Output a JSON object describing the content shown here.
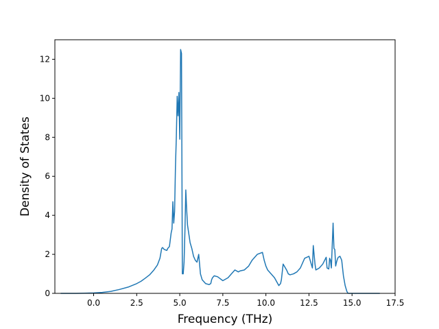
{
  "chart_data": {
    "type": "line",
    "title": "",
    "xlabel": "Frequency (THz)",
    "ylabel": "Density of States",
    "xlim": [
      -2.25,
      17.5
    ],
    "ylim": [
      0,
      13
    ],
    "xticks": [
      0.0,
      2.5,
      5.0,
      7.5,
      10.0,
      12.5,
      15.0,
      17.5
    ],
    "xtick_labels": [
      "0.0",
      "2.5",
      "5.0",
      "7.5",
      "10.0",
      "12.5",
      "15.0",
      "17.5"
    ],
    "yticks": [
      0,
      2,
      4,
      6,
      8,
      10,
      12
    ],
    "ytick_labels": [
      "0",
      "2",
      "4",
      "6",
      "8",
      "10",
      "12"
    ],
    "grid": false,
    "legend": "none",
    "line_color": "#1f77b4",
    "series": [
      {
        "x": [
          -1.9,
          -1.0,
          0.0,
          0.5,
          1.0,
          1.5,
          2.0,
          2.5,
          2.75,
          3.0,
          3.25,
          3.5,
          3.7,
          3.85,
          3.95,
          4.0,
          4.1,
          4.25,
          4.3,
          4.4,
          4.5,
          4.55,
          4.6,
          4.65,
          4.7,
          4.75,
          4.8,
          4.85,
          4.9,
          4.95,
          5.0,
          5.05,
          5.1,
          5.15,
          5.2,
          5.25,
          5.3,
          5.35,
          5.4,
          5.45,
          5.55,
          5.6,
          5.7,
          5.75,
          5.8,
          5.9,
          6.0,
          6.1,
          6.2,
          6.3,
          6.5,
          6.7,
          6.8,
          6.85,
          6.9,
          7.0,
          7.2,
          7.5,
          7.8,
          8.0,
          8.2,
          8.4,
          8.5,
          8.75,
          9.0,
          9.2,
          9.5,
          9.8,
          9.9,
          10.0,
          10.1,
          10.3,
          10.5,
          10.75,
          10.85,
          10.9,
          11.0,
          11.2,
          11.3,
          11.4,
          11.6,
          11.8,
          12.0,
          12.25,
          12.5,
          12.7,
          12.75,
          12.85,
          12.9,
          13.0,
          13.1,
          13.3,
          13.5,
          13.55,
          13.65,
          13.7,
          13.75,
          13.8,
          13.9,
          13.95,
          14.0,
          14.05,
          14.1,
          14.15,
          14.2,
          14.3,
          14.4,
          14.5,
          14.6,
          14.7,
          14.75,
          14.8,
          14.9,
          14.95,
          15.0,
          15.1,
          15.3,
          15.5,
          16.0,
          16.6
        ],
        "y": [
          0.0,
          0.0,
          0.02,
          0.05,
          0.1,
          0.2,
          0.32,
          0.5,
          0.62,
          0.78,
          0.95,
          1.2,
          1.45,
          1.8,
          2.3,
          2.35,
          2.25,
          2.2,
          2.3,
          2.4,
          3.1,
          3.3,
          4.7,
          3.6,
          4.2,
          6.5,
          8.0,
          10.1,
          9.1,
          10.3,
          7.9,
          12.5,
          12.3,
          1.0,
          1.0,
          1.6,
          3.2,
          5.3,
          4.3,
          3.5,
          2.9,
          2.6,
          2.3,
          2.1,
          1.9,
          1.7,
          1.6,
          2.0,
          1.0,
          0.7,
          0.5,
          0.45,
          0.5,
          0.7,
          0.8,
          0.9,
          0.85,
          0.65,
          0.8,
          1.0,
          1.2,
          1.1,
          1.15,
          1.2,
          1.4,
          1.7,
          2.0,
          2.1,
          1.7,
          1.4,
          1.2,
          1.0,
          0.8,
          0.4,
          0.5,
          0.7,
          1.5,
          1.2,
          1.0,
          0.95,
          1.0,
          1.1,
          1.3,
          1.8,
          1.9,
          1.3,
          2.45,
          1.5,
          1.2,
          1.25,
          1.3,
          1.5,
          1.85,
          1.3,
          1.25,
          1.8,
          1.7,
          1.3,
          3.6,
          2.3,
          2.25,
          1.4,
          1.6,
          1.75,
          1.85,
          1.9,
          1.7,
          0.9,
          0.4,
          0.1,
          0.02,
          0.0,
          0.0,
          0.0,
          0.0,
          0.0,
          0.0,
          0.0,
          0.0,
          0.0
        ]
      }
    ]
  }
}
